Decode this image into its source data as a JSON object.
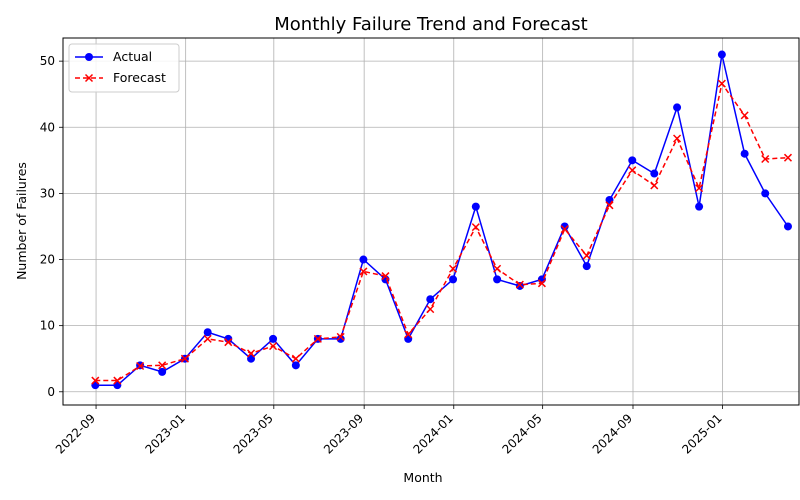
{
  "chart_data": {
    "type": "line",
    "title": "Monthly Failure Trend and Forecast",
    "xlabel": "Month",
    "ylabel": "Number of Failures",
    "ylim": [
      -2,
      53.5
    ],
    "xlim": [
      "2022-07-18",
      "2025-04-15"
    ],
    "grid": true,
    "legend_position": "top-left",
    "x_ticks": [
      "2022-09",
      "2023-01",
      "2023-05",
      "2023-09",
      "2024-01",
      "2024-05",
      "2024-09",
      "2025-01"
    ],
    "y_ticks": [
      0,
      10,
      20,
      30,
      40,
      50
    ],
    "x": [
      "2022-08-31",
      "2022-09-30",
      "2022-10-31",
      "2022-11-30",
      "2022-12-31",
      "2023-01-31",
      "2023-02-28",
      "2023-03-31",
      "2023-04-30",
      "2023-05-31",
      "2023-06-30",
      "2023-07-31",
      "2023-08-31",
      "2023-09-30",
      "2023-10-31",
      "2023-11-30",
      "2023-12-31",
      "2024-01-31",
      "2024-02-29",
      "2024-03-31",
      "2024-04-30",
      "2024-05-31",
      "2024-06-30",
      "2024-07-31",
      "2024-08-31",
      "2024-09-30",
      "2024-10-31",
      "2024-11-30",
      "2024-12-31",
      "2025-01-31",
      "2025-02-28",
      "2025-03-31"
    ],
    "series": [
      {
        "name": "Actual",
        "color": "#0000ff",
        "marker": "circle",
        "line": "solid",
        "values": [
          1,
          1,
          4,
          3,
          5,
          9,
          8,
          5,
          8,
          4,
          8,
          8,
          20,
          17,
          8,
          14,
          17,
          28,
          17,
          16,
          17,
          25,
          19,
          29,
          35,
          33,
          43,
          28,
          51,
          36,
          30,
          25
        ]
      },
      {
        "name": "Forecast",
        "color": "#ff0000",
        "marker": "x",
        "line": "dashed",
        "values": [
          1.7,
          1.7,
          3.9,
          4.0,
          5.0,
          8.0,
          7.5,
          5.8,
          6.9,
          5.0,
          8.0,
          8.3,
          18.2,
          17.5,
          8.7,
          12.5,
          18.6,
          24.9,
          18.6,
          16.2,
          16.4,
          24.6,
          20.6,
          28.2,
          33.5,
          31.2,
          38.3,
          30.8,
          46.6,
          41.8,
          35.2,
          35.4
        ]
      }
    ]
  }
}
